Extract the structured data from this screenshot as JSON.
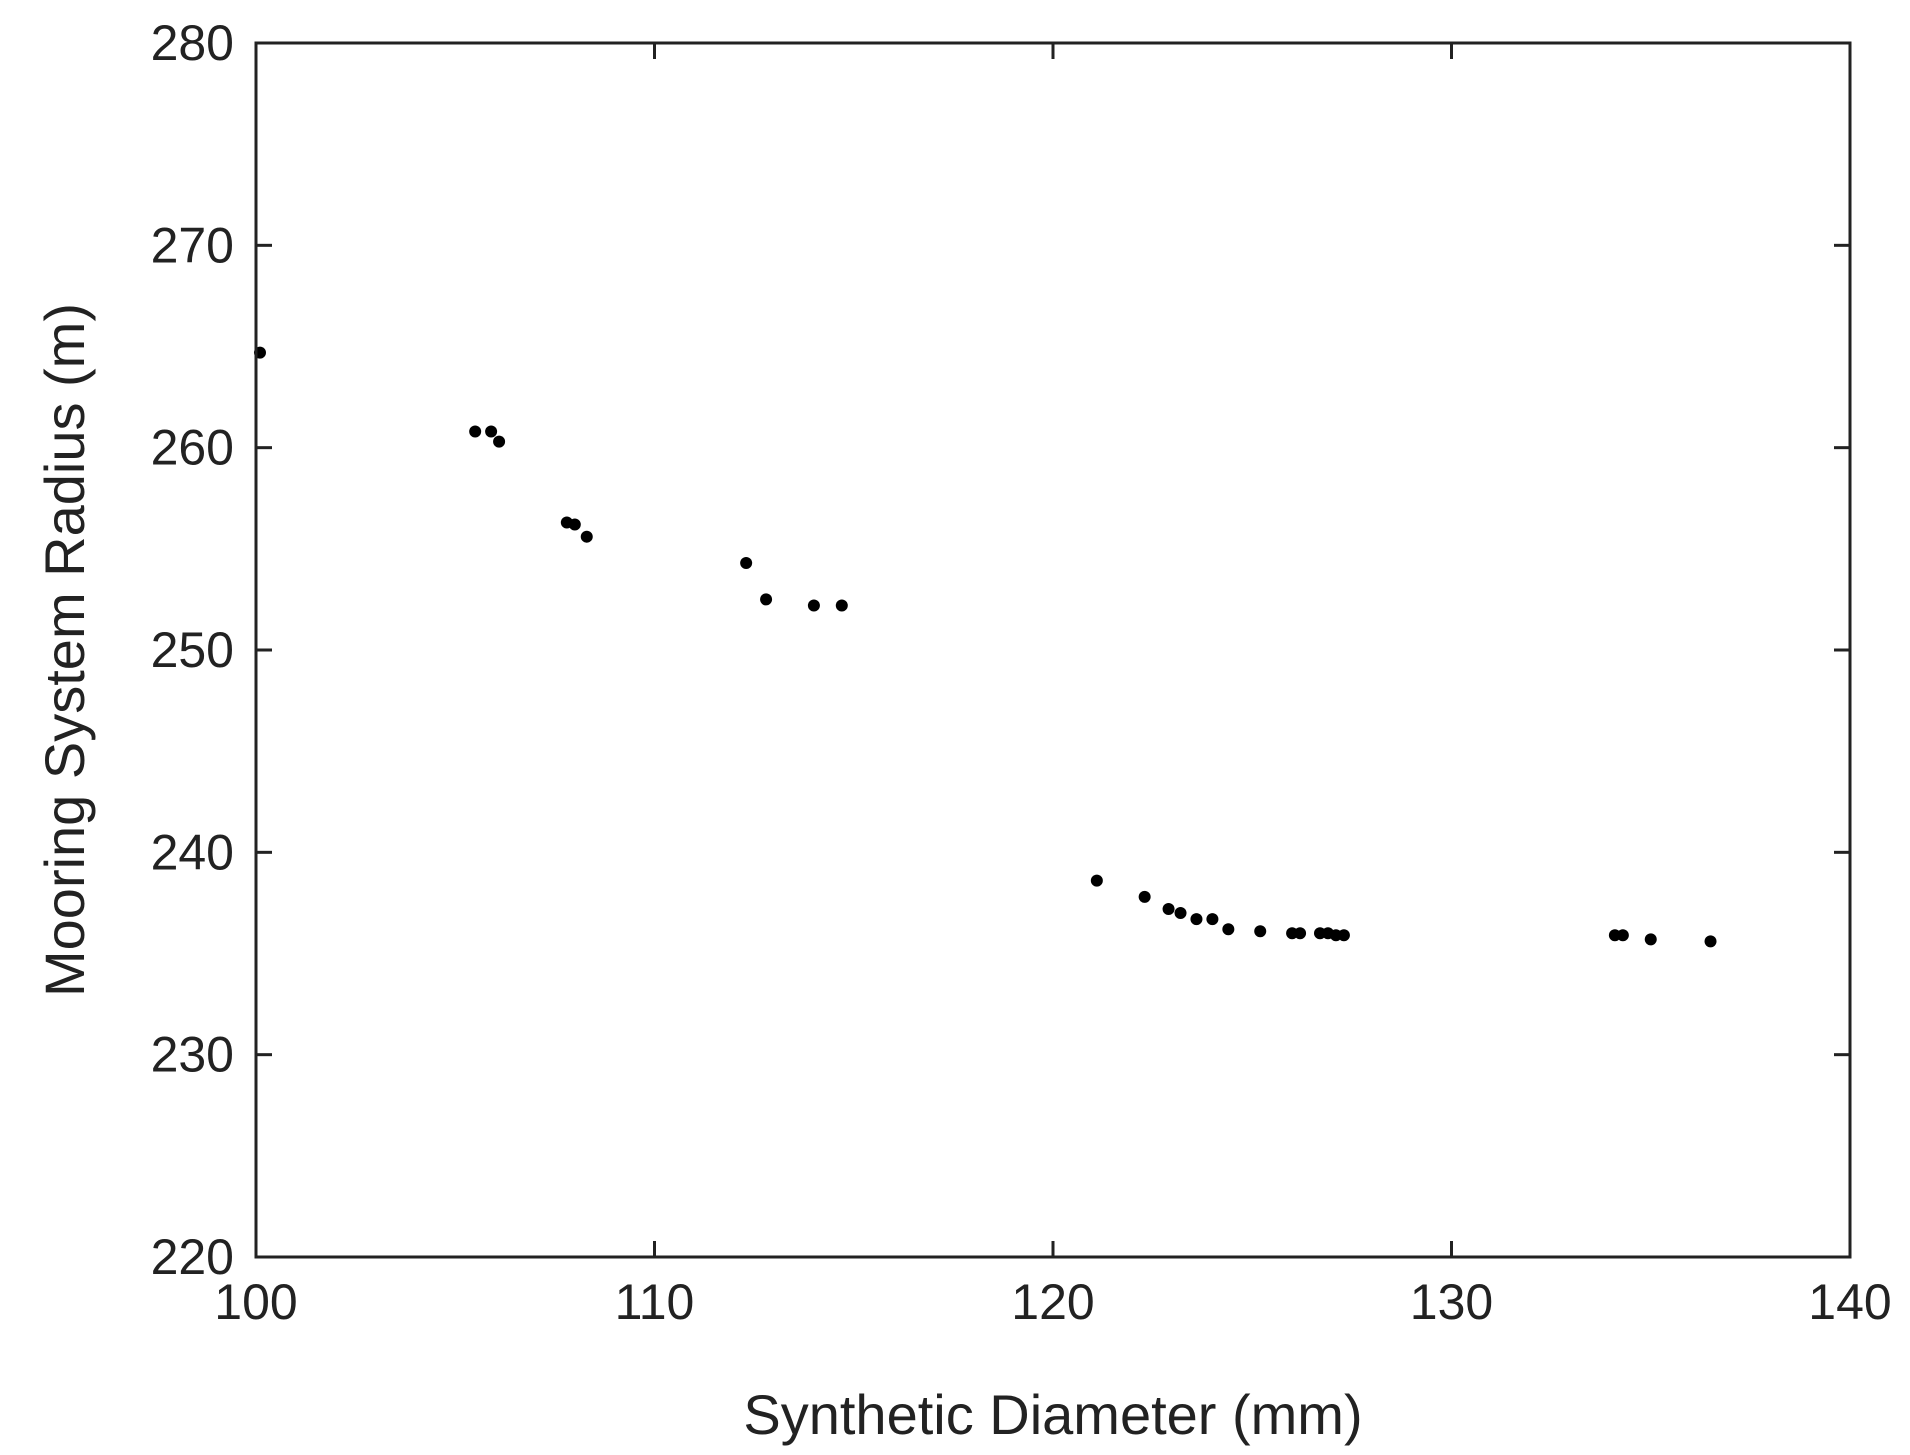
{
  "chart_data": {
    "type": "scatter",
    "title": "",
    "xlabel": "Synthetic Diameter (mm)",
    "ylabel": "Mooring System Radius (m)",
    "xlim": [
      100,
      140
    ],
    "ylim": [
      220,
      280
    ],
    "xticks": [
      100,
      110,
      120,
      130,
      140
    ],
    "yticks": [
      220,
      230,
      240,
      250,
      260,
      270,
      280
    ],
    "xtick_labels": [
      "100",
      "110",
      "120",
      "130",
      "140"
    ],
    "ytick_labels": [
      "220",
      "230",
      "240",
      "250",
      "260",
      "270",
      "280"
    ],
    "grid": false,
    "marker_color": "#000000",
    "series": [
      {
        "points": [
          [
            100.1,
            264.7
          ],
          [
            105.5,
            260.8
          ],
          [
            105.9,
            260.8
          ],
          [
            106.1,
            260.3
          ],
          [
            107.8,
            256.3
          ],
          [
            108.0,
            256.2
          ],
          [
            108.3,
            255.6
          ],
          [
            112.3,
            254.3
          ],
          [
            112.8,
            252.5
          ],
          [
            114.0,
            252.2
          ],
          [
            114.7,
            252.2
          ],
          [
            121.1,
            238.6
          ],
          [
            122.3,
            237.8
          ],
          [
            122.9,
            237.2
          ],
          [
            123.2,
            237.0
          ],
          [
            123.6,
            236.7
          ],
          [
            124.0,
            236.7
          ],
          [
            124.4,
            236.2
          ],
          [
            125.2,
            236.1
          ],
          [
            126.0,
            236.0
          ],
          [
            126.2,
            236.0
          ],
          [
            126.7,
            236.0
          ],
          [
            126.9,
            236.0
          ],
          [
            127.1,
            235.9
          ],
          [
            127.3,
            235.9
          ],
          [
            134.1,
            235.9
          ],
          [
            134.3,
            235.9
          ],
          [
            135.0,
            235.7
          ],
          [
            136.5,
            235.6
          ]
        ]
      }
    ]
  }
}
